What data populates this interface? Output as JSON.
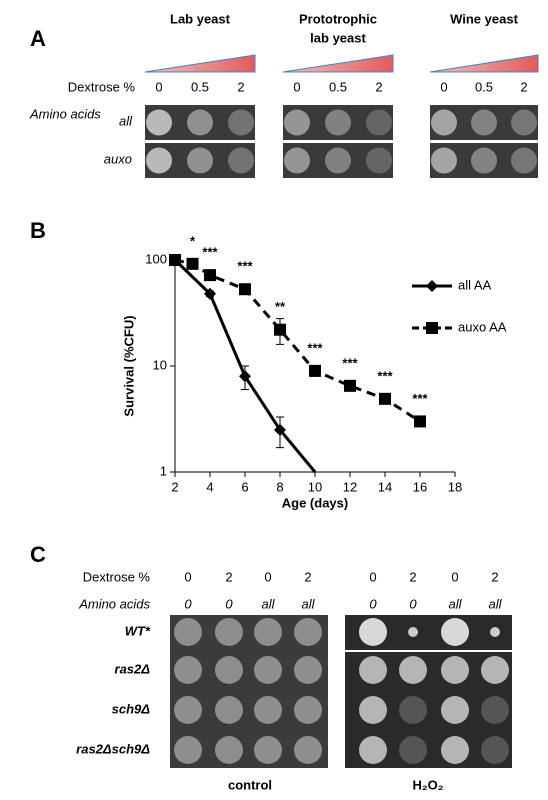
{
  "panel_a": {
    "label": "A",
    "dextrose_label": "Dextrose %",
    "amino_label": "Amino acids",
    "rows": [
      "all",
      "auxo"
    ],
    "groups": [
      {
        "title_lines": [
          "Lab yeast"
        ],
        "dextrose": [
          0,
          0.5,
          2
        ]
      },
      {
        "title_lines": [
          "Prototrophic",
          "lab yeast"
        ],
        "dextrose": [
          0,
          0.5,
          2
        ]
      },
      {
        "title_lines": [
          "Wine yeast"
        ],
        "dextrose": [
          0,
          0.5,
          2
        ]
      }
    ]
  },
  "panel_b": {
    "label": "B"
  },
  "chart_data": {
    "type": "line",
    "x_label": "Age (days)",
    "y_label": "Survival (%CFU)",
    "xlim": [
      2,
      18
    ],
    "xticks": [
      2,
      4,
      6,
      8,
      10,
      12,
      14,
      16,
      18
    ],
    "ylim": [
      1,
      100
    ],
    "yticks": [
      1,
      10,
      100
    ],
    "log_scale": true,
    "legend": "right",
    "series": [
      {
        "name": "all AA",
        "color": "#000000",
        "marker": "diamond",
        "dashed": false,
        "x": [
          2,
          4,
          6,
          8,
          10
        ],
        "values": [
          100,
          48,
          8,
          2.5,
          1
        ],
        "errors": [
          3,
          3,
          2,
          0.8,
          null
        ]
      },
      {
        "name": "auxo AA",
        "color": "#000000",
        "marker": "square",
        "dashed": true,
        "x": [
          2,
          3,
          4,
          6,
          8,
          10,
          12,
          14,
          16
        ],
        "values": [
          100,
          92,
          72,
          53,
          22,
          9,
          6.5,
          4.9,
          3
        ],
        "errors": [
          3,
          5,
          5,
          4,
          6,
          1,
          0.4,
          0.4,
          0.2
        ]
      }
    ],
    "annotations": [
      {
        "x": 3,
        "text": "*"
      },
      {
        "x": 4,
        "text": "***"
      },
      {
        "x": 6,
        "text": "***"
      },
      {
        "x": 8,
        "text": "**"
      },
      {
        "x": 10,
        "text": "***"
      },
      {
        "x": 12,
        "text": "***"
      },
      {
        "x": 14,
        "text": "***"
      },
      {
        "x": 16,
        "text": "***"
      }
    ]
  },
  "panel_c": {
    "label": "C",
    "dextrose_label": "Dextrose %",
    "amino_label": "Amino acids",
    "dextrose": [
      0,
      2,
      0,
      2,
      0,
      2,
      0,
      2
    ],
    "amino_acids": [
      "0",
      "0",
      "all",
      "all",
      "0",
      "0",
      "all",
      "all"
    ],
    "strains": [
      "WT*",
      "ras2Δ",
      "sch9Δ",
      "ras2Δsch9Δ"
    ],
    "conditions": [
      "control",
      "H₂O₂"
    ]
  }
}
